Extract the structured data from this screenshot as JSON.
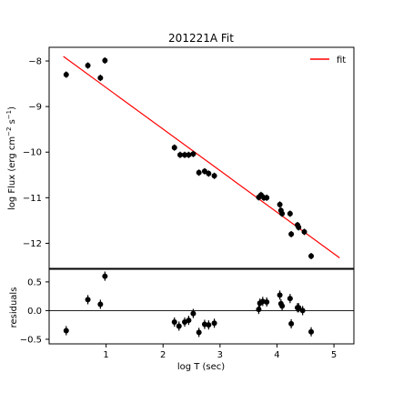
{
  "chart_data": {
    "type": "scatter",
    "title": "201221A Fit",
    "xlabel": "log T (sec)",
    "xlim": [
      0.0,
      5.35
    ],
    "xticks": [
      1,
      2,
      3,
      4,
      5
    ],
    "legend_placement": "top-right",
    "panels": [
      {
        "id": "flux",
        "ylabel_main": "log Flux (erg cm",
        "ylabel_sup1": "−2",
        "ylabel_mid": " s",
        "ylabel_sup2": "−1",
        "ylabel_end": ")",
        "ylim": [
          -12.55,
          -7.7
        ],
        "yticks": [
          -8,
          -9,
          -10,
          -11,
          -12
        ],
        "yticklabels": [
          "−8",
          "−9",
          "−10",
          "−11",
          "−12"
        ],
        "points": [
          {
            "x": 0.3,
            "y": -8.3
          },
          {
            "x": 0.68,
            "y": -8.1
          },
          {
            "x": 0.9,
            "y": -8.37
          },
          {
            "x": 0.98,
            "y": -7.99
          },
          {
            "x": 2.2,
            "y": -9.9
          },
          {
            "x": 2.3,
            "y": -10.06
          },
          {
            "x": 2.38,
            "y": -10.06
          },
          {
            "x": 2.45,
            "y": -10.06
          },
          {
            "x": 2.53,
            "y": -10.04
          },
          {
            "x": 2.63,
            "y": -10.45
          },
          {
            "x": 2.73,
            "y": -10.42
          },
          {
            "x": 2.8,
            "y": -10.47
          },
          {
            "x": 2.9,
            "y": -10.52
          },
          {
            "x": 3.68,
            "y": -10.99
          },
          {
            "x": 3.72,
            "y": -10.94
          },
          {
            "x": 3.77,
            "y": -11.0
          },
          {
            "x": 3.82,
            "y": -11.0
          },
          {
            "x": 4.05,
            "y": -11.15
          },
          {
            "x": 4.07,
            "y": -11.28
          },
          {
            "x": 4.09,
            "y": -11.35
          },
          {
            "x": 4.23,
            "y": -11.35
          },
          {
            "x": 4.25,
            "y": -11.8
          },
          {
            "x": 4.36,
            "y": -11.6
          },
          {
            "x": 4.38,
            "y": -11.65
          },
          {
            "x": 4.48,
            "y": -11.75
          },
          {
            "x": 4.6,
            "y": -12.28
          }
        ],
        "fit_line": {
          "name": "fit",
          "x": [
            0.25,
            5.1
          ],
          "y": [
            -7.9,
            -12.32
          ],
          "color": "#ff0000"
        }
      },
      {
        "id": "residuals",
        "ylabel": "residuals",
        "ylim": [
          -0.58,
          0.72
        ],
        "yticks": [
          0.5,
          0.0,
          -0.5
        ],
        "yticklabels": [
          "0.5",
          "0.0",
          "−0.5"
        ],
        "zero_line": 0.0,
        "points": [
          {
            "x": 0.3,
            "y": -0.35
          },
          {
            "x": 0.68,
            "y": 0.19
          },
          {
            "x": 0.9,
            "y": 0.11
          },
          {
            "x": 0.98,
            "y": 0.6
          },
          {
            "x": 2.2,
            "y": -0.2
          },
          {
            "x": 2.28,
            "y": -0.27
          },
          {
            "x": 2.38,
            "y": -0.2
          },
          {
            "x": 2.45,
            "y": -0.17
          },
          {
            "x": 2.53,
            "y": -0.05
          },
          {
            "x": 2.63,
            "y": -0.38
          },
          {
            "x": 2.73,
            "y": -0.24
          },
          {
            "x": 2.8,
            "y": -0.25
          },
          {
            "x": 2.9,
            "y": -0.22
          },
          {
            "x": 3.68,
            "y": 0.02
          },
          {
            "x": 3.7,
            "y": 0.13
          },
          {
            "x": 3.75,
            "y": 0.16
          },
          {
            "x": 3.82,
            "y": 0.15
          },
          {
            "x": 4.05,
            "y": 0.27
          },
          {
            "x": 4.07,
            "y": 0.12
          },
          {
            "x": 4.09,
            "y": 0.08
          },
          {
            "x": 4.23,
            "y": 0.21
          },
          {
            "x": 4.25,
            "y": -0.23
          },
          {
            "x": 4.36,
            "y": 0.05
          },
          {
            "x": 4.38,
            "y": 0.05
          },
          {
            "x": 4.45,
            "y": 0.0
          },
          {
            "x": 4.6,
            "y": -0.37
          }
        ],
        "error": 0.08
      }
    ],
    "flux_error": 0.07,
    "marker_color": "#000000",
    "line_color": "#ff0000"
  }
}
